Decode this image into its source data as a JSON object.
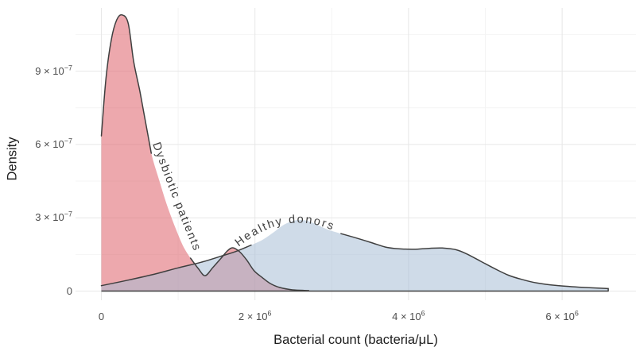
{
  "figure": {
    "background": "#ffffff"
  },
  "colors": {
    "grid_major": "#e7e7e7",
    "grid_minor": "#f4f4f4",
    "outline": "#3f3f3f",
    "baseline": "#3f3f3f",
    "tick_text": "#4d4d4d",
    "axis_title_text": "#1c1c1c",
    "curve_label_text": "#3d3d3d",
    "dysbiotic_fill": "rgba(222,96,106,0.55)",
    "healthy_fill": "rgba(164,187,211,0.53)"
  },
  "chart_data": {
    "type": "area",
    "subtype": "density",
    "title": "",
    "xlabel": "Bacterial count (bacteria/μL)",
    "ylabel": "Density",
    "xlim": [
      0,
      6970000
    ],
    "ylim": [
      0,
      1.19e-06
    ],
    "grid": "on",
    "legend": "labels-on-curves",
    "x_ticks": [
      {
        "value": 0,
        "base": "0",
        "exp": ""
      },
      {
        "value": 2000000,
        "base": "2 × 10",
        "exp": "6"
      },
      {
        "value": 4000000,
        "base": "4 × 10",
        "exp": "6"
      },
      {
        "value": 6000000,
        "base": "6 × 10",
        "exp": "6"
      }
    ],
    "y_ticks": [
      {
        "value": 0,
        "base": "0",
        "exp": ""
      },
      {
        "value": 3e-07,
        "base": "3 × 10",
        "exp": "−7"
      },
      {
        "value": 6e-07,
        "base": "6 × 10",
        "exp": "−7"
      },
      {
        "value": 9e-07,
        "base": "9 × 10",
        "exp": "−7"
      }
    ],
    "x_minor_breaks": [
      1000000,
      3000000,
      5000000
    ],
    "y_minor_breaks": [
      1.5e-07,
      4.5e-07,
      7.5e-07,
      1.05e-06
    ],
    "series": [
      {
        "name": "dysbiotic-patients",
        "label": "Dysbiotic patients",
        "peak": {
          "x": 270000,
          "density": 1.13e-06
        },
        "fill": "rgba(222,96,106,0.55)",
        "points": [
          [
            0,
            6.35e-07
          ],
          [
            60000,
            8.7e-07
          ],
          [
            130000,
            1.03e-06
          ],
          [
            200000,
            1.11e-06
          ],
          [
            270000,
            1.13e-06
          ],
          [
            350000,
            1.095e-06
          ],
          [
            420000,
            9.4e-07
          ],
          [
            500000,
            8.2e-07
          ],
          [
            570000,
            7e-07
          ],
          [
            650000,
            5.64e-07
          ],
          [
            750000,
            4.57e-07
          ],
          [
            850000,
            3.56e-07
          ],
          [
            960000,
            2.62e-07
          ],
          [
            1060000,
            1.87e-07
          ],
          [
            1160000,
            1.35e-07
          ],
          [
            1260000,
            9.3e-08
          ],
          [
            1350000,
            6.3e-08
          ],
          [
            1450000,
            9.6e-08
          ],
          [
            1560000,
            1.35e-07
          ],
          [
            1640000,
            1.64e-07
          ],
          [
            1710000,
            1.77e-07
          ],
          [
            1800000,
            1.61e-07
          ],
          [
            1890000,
            1.28e-07
          ],
          [
            1990000,
            8.3e-08
          ],
          [
            2100000,
            5.4e-08
          ],
          [
            2200000,
            3.1e-08
          ],
          [
            2320000,
            1.5e-08
          ],
          [
            2490000,
            5e-09
          ],
          [
            2700000,
            2e-09
          ]
        ],
        "stroke_segments": [
          [
            0,
            9
          ],
          [
            14,
            28
          ]
        ],
        "close_right": false
      },
      {
        "name": "healthy-donors",
        "label": "Healthy donors",
        "peak": {
          "x": 2570000,
          "density": 2.9e-07
        },
        "fill": "rgba(164,187,211,0.53)",
        "points": [
          [
            0,
            2.2e-08
          ],
          [
            350000,
            4.5e-08
          ],
          [
            700000,
            7e-08
          ],
          [
            1000000,
            9.5e-08
          ],
          [
            1300000,
            1.18e-07
          ],
          [
            1550000,
            1.42e-07
          ],
          [
            1750000,
            1.62e-07
          ],
          [
            1950000,
            1.88e-07
          ],
          [
            2100000,
            2.1e-07
          ],
          [
            2250000,
            2.42e-07
          ],
          [
            2380000,
            2.72e-07
          ],
          [
            2520000,
            2.89e-07
          ],
          [
            2640000,
            2.9e-07
          ],
          [
            2780000,
            2.76e-07
          ],
          [
            2940000,
            2.53e-07
          ],
          [
            3120000,
            2.35e-07
          ],
          [
            3320000,
            2.17e-07
          ],
          [
            3520000,
            1.98e-07
          ],
          [
            3700000,
            1.8e-07
          ],
          [
            3870000,
            1.73e-07
          ],
          [
            4070000,
            1.71e-07
          ],
          [
            4270000,
            1.75e-07
          ],
          [
            4440000,
            1.76e-07
          ],
          [
            4620000,
            1.69e-07
          ],
          [
            4770000,
            1.5e-07
          ],
          [
            4940000,
            1.22e-07
          ],
          [
            5120000,
            9.2e-08
          ],
          [
            5300000,
            6.5e-08
          ],
          [
            5470000,
            4.8e-08
          ],
          [
            5670000,
            3.3e-08
          ],
          [
            5920000,
            2.3e-08
          ],
          [
            6220000,
            1.6e-08
          ],
          [
            6600000,
            1e-08
          ]
        ],
        "stroke_segments": [
          [
            0,
            7
          ],
          [
            15,
            32
          ]
        ],
        "close_right": true
      }
    ]
  }
}
